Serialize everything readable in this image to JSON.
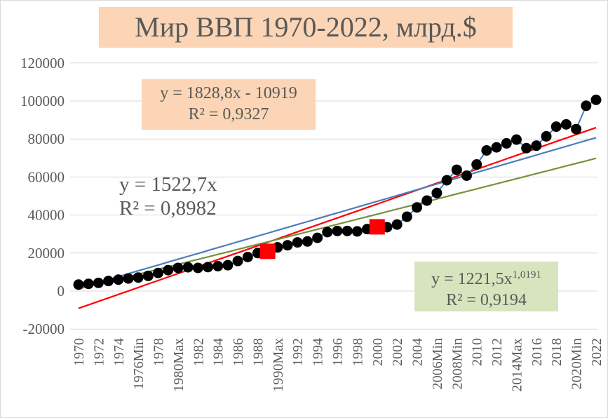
{
  "chart_data": {
    "type": "line",
    "title": "Мир ВВП 1970-2022, млрд.$",
    "xlabel": "",
    "ylabel": "",
    "ylim": [
      -20000,
      120000
    ],
    "yticks": [
      "-20000",
      "0",
      "20000",
      "40000",
      "60000",
      "80000",
      "100000",
      "120000"
    ],
    "grid": true,
    "legend": "none",
    "categories": [
      1970,
      1971,
      1972,
      1973,
      1974,
      1975,
      1976,
      1977,
      1978,
      1979,
      1980,
      1981,
      1982,
      1983,
      1984,
      1985,
      1986,
      1987,
      1988,
      1989,
      1990,
      1991,
      1992,
      1993,
      1994,
      1995,
      1996,
      1997,
      1998,
      1999,
      2000,
      2001,
      2002,
      2003,
      2004,
      2005,
      2006,
      2007,
      2008,
      2009,
      2010,
      2011,
      2012,
      2013,
      2014,
      2015,
      2016,
      2017,
      2018,
      2019,
      2020,
      2021,
      2022
    ],
    "tick_labels": [
      "1970",
      "1972",
      "1974",
      "1976Min",
      "1978",
      "1980Max",
      "1982",
      "1984",
      "1986",
      "1988",
      "1990Max",
      "1992",
      "1994",
      "1996",
      "1998",
      "2000",
      "2002",
      "2004",
      "2006Min",
      "2008Min",
      "2010",
      "2012",
      "2014Max",
      "2016",
      "2018",
      "2020Min",
      "2022"
    ],
    "series": [
      {
        "values": [
          3400,
          3800,
          4300,
          5300,
          6000,
          6600,
          7100,
          8000,
          9500,
          11000,
          12200,
          12500,
          12200,
          12600,
          13100,
          13600,
          15800,
          17900,
          20000,
          20900,
          23000,
          24100,
          25600,
          26100,
          28000,
          31000,
          31600,
          31600,
          31400,
          32600,
          33800,
          33600,
          35000,
          39100,
          44000,
          47600,
          51600,
          58300,
          63800,
          60700,
          66600,
          74000,
          75600,
          77700,
          79700,
          75200,
          76500,
          81400,
          86500,
          87700,
          85200,
          97500,
          100600
        ],
        "line_color": "#4a7ebb",
        "marker_color": "#000000"
      }
    ],
    "highlighted_points": [
      {
        "category": 1989,
        "value": 20900
      },
      {
        "category": 2000,
        "value": 33800
      }
    ],
    "highlight_color": "#ff0000",
    "trendlines": [
      {
        "kind": "linear",
        "slope": 1828.8,
        "intercept": -10919,
        "color": "#ff0000",
        "equation": "y = 1828,8x - 10919",
        "r2": "R² = 0,9327"
      },
      {
        "kind": "linear-origin",
        "slope": 1522.7,
        "intercept": 0,
        "color": "#4a7ebb",
        "equation": "y = 1522,7x",
        "r2": "R² = 0,8982"
      },
      {
        "kind": "power",
        "coef": 1221.5,
        "exponent": 1.0191,
        "color": "#77933c",
        "equation_base": "y = 1221,5x",
        "equation_exp": "1,0191",
        "r2": "R² = 0,9194"
      }
    ]
  }
}
